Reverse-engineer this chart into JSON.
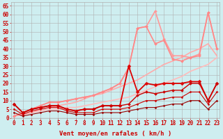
{
  "background_color": "#ceeef0",
  "grid_color": "#b0b0b0",
  "xlabel": "Vent moyen/en rafales ( km/h )",
  "xlabel_color": "#cc0000",
  "xlabel_fontsize": 6.5,
  "xtick_labels": [
    "0",
    "1",
    "2",
    "3",
    "4",
    "5",
    "6",
    "7",
    "8",
    "9",
    "10",
    "11",
    "12",
    "13",
    "14",
    "15",
    "16",
    "17",
    "18",
    "19",
    "20",
    "21",
    "22",
    "23"
  ],
  "ytick_values": [
    0,
    5,
    10,
    15,
    20,
    25,
    30,
    35,
    40,
    45,
    50,
    55,
    60,
    65
  ],
  "xlim": [
    -0.3,
    23.3
  ],
  "ylim": [
    0,
    67
  ],
  "lines": [
    {
      "y": [
        1,
        2,
        3,
        4,
        5,
        5,
        6,
        6,
        7,
        8,
        9,
        10,
        11,
        12,
        14,
        16,
        18,
        20,
        22,
        24,
        27,
        29,
        31,
        35
      ],
      "color": "#ffbbbb",
      "lw": 1.2,
      "marker": null,
      "ms": 0
    },
    {
      "y": [
        1,
        2,
        3,
        5,
        6,
        7,
        8,
        9,
        11,
        13,
        14,
        16,
        18,
        20,
        22,
        25,
        28,
        31,
        33,
        35,
        38,
        40,
        43,
        36
      ],
      "color": "#ffaaaa",
      "lw": 1.2,
      "marker": null,
      "ms": 0
    },
    {
      "y": [
        1,
        3,
        5,
        7,
        9,
        9,
        10,
        11,
        12,
        13,
        15,
        17,
        20,
        29,
        52,
        53,
        62,
        46,
        36,
        36,
        35,
        37,
        61,
        40
      ],
      "color": "#ff9999",
      "lw": 1.2,
      "marker": "D",
      "ms": 2.0
    },
    {
      "y": [
        1,
        3,
        5,
        7,
        9,
        9,
        10,
        11,
        12,
        13,
        15,
        17,
        20,
        29,
        52,
        53,
        43,
        45,
        34,
        33,
        35,
        36,
        61,
        40
      ],
      "color": "#ff8888",
      "lw": 1.2,
      "marker": "D",
      "ms": 2.0
    },
    {
      "y": [
        8,
        3,
        5,
        6,
        7,
        7,
        5,
        4,
        5,
        5,
        7,
        7,
        7,
        30,
        15,
        20,
        19,
        20,
        20,
        20,
        21,
        21,
        10,
        20
      ],
      "color": "#dd0000",
      "lw": 1.3,
      "marker": "D",
      "ms": 2.5
    },
    {
      "y": [
        8,
        3,
        5,
        6,
        7,
        7,
        5,
        4,
        5,
        5,
        7,
        7,
        7,
        8,
        13,
        15,
        14,
        15,
        16,
        16,
        20,
        20,
        10,
        20
      ],
      "color": "#cc0000",
      "lw": 1.0,
      "marker": "D",
      "ms": 2.0
    },
    {
      "y": [
        5,
        2,
        4,
        5,
        6,
        6,
        4,
        3,
        3,
        3,
        5,
        5,
        5,
        6,
        8,
        10,
        10,
        11,
        12,
        12,
        15,
        15,
        8,
        15
      ],
      "color": "#cc0000",
      "lw": 0.8,
      "marker": "D",
      "ms": 1.5
    },
    {
      "y": [
        3,
        1,
        2,
        3,
        4,
        4,
        3,
        2,
        2,
        2,
        3,
        3,
        3,
        4,
        5,
        6,
        6,
        7,
        8,
        8,
        10,
        10,
        5,
        10
      ],
      "color": "#990000",
      "lw": 0.8,
      "marker": "D",
      "ms": 1.5
    }
  ],
  "tick_fontsize": 5.5,
  "tick_color": "#cc0000"
}
